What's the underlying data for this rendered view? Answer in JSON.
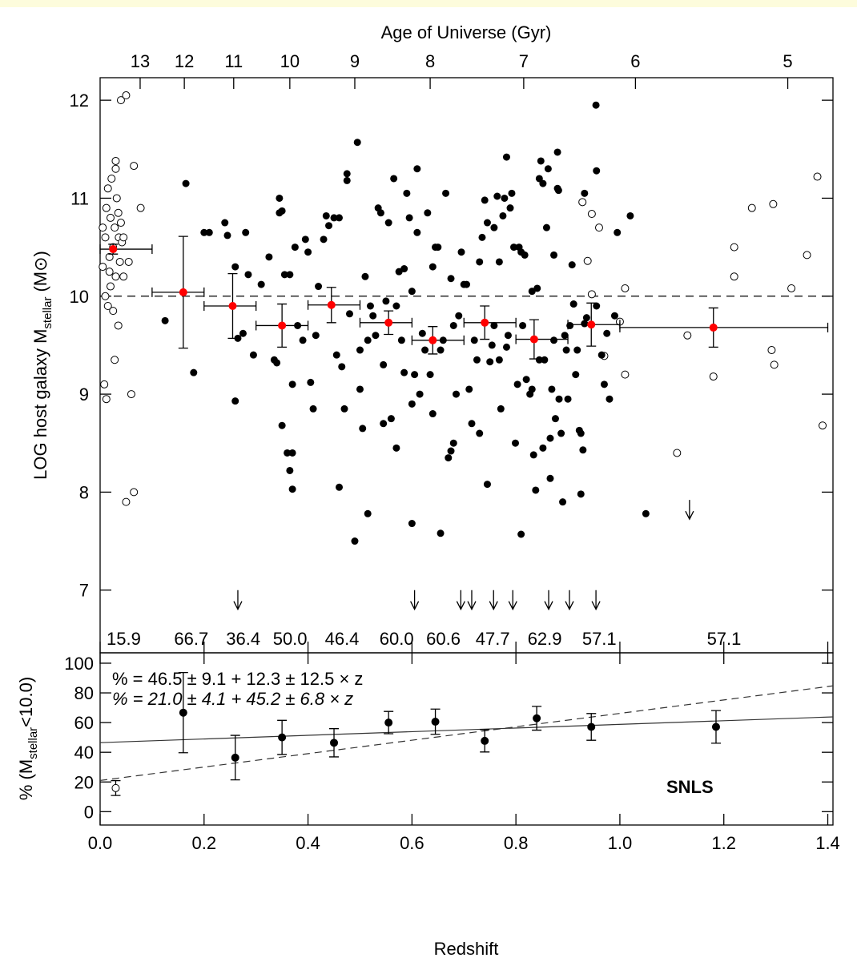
{
  "chart_data": [
    {
      "type": "scatter",
      "top_axis_label": "Age of Universe (Gyr)",
      "top_ticks": [
        13,
        12,
        11,
        10,
        9,
        8,
        7,
        6,
        5
      ],
      "top_tick_z": [
        0.077,
        0.162,
        0.257,
        0.365,
        0.49,
        0.635,
        0.815,
        1.03,
        1.323
      ],
      "y_label": "LOG host galaxy M",
      "y_label_sub": "stellar",
      "y_label_unit": "(M⊙)",
      "xlim": [
        0,
        1.41
      ],
      "ylim": [
        6.36,
        12.23
      ],
      "xticks": [
        0,
        0.2,
        0.4,
        0.6,
        0.8,
        1,
        1.2,
        1.4
      ],
      "yticks": [
        7,
        8,
        9,
        10,
        11,
        12
      ],
      "threshold": 10,
      "color": "#000000",
      "filled": [
        [
          0.125,
          9.75
        ],
        [
          0.165,
          11.15
        ],
        [
          0.18,
          9.22
        ],
        [
          0.2,
          10.65
        ],
        [
          0.21,
          10.65
        ],
        [
          0.24,
          10.75
        ],
        [
          0.245,
          10.62
        ],
        [
          0.26,
          10.3
        ],
        [
          0.26,
          8.93
        ],
        [
          0.265,
          9.57
        ],
        [
          0.275,
          9.62
        ],
        [
          0.28,
          10.65
        ],
        [
          0.285,
          10.22
        ],
        [
          0.295,
          9.4
        ],
        [
          0.31,
          10.12
        ],
        [
          0.325,
          10.4
        ],
        [
          0.335,
          9.35
        ],
        [
          0.34,
          9.32
        ],
        [
          0.345,
          11.0
        ],
        [
          0.345,
          10.85
        ],
        [
          0.35,
          10.87
        ],
        [
          0.35,
          8.68
        ],
        [
          0.355,
          10.22
        ],
        [
          0.36,
          8.4
        ],
        [
          0.365,
          10.22
        ],
        [
          0.365,
          8.22
        ],
        [
          0.37,
          8.4
        ],
        [
          0.37,
          8.03
        ],
        [
          0.37,
          9.1
        ],
        [
          0.375,
          10.5
        ],
        [
          0.38,
          9.7
        ],
        [
          0.39,
          9.55
        ],
        [
          0.395,
          10.58
        ],
        [
          0.4,
          10.45
        ],
        [
          0.405,
          9.12
        ],
        [
          0.41,
          8.85
        ],
        [
          0.415,
          9.6
        ],
        [
          0.42,
          10.1
        ],
        [
          0.43,
          10.58
        ],
        [
          0.435,
          10.82
        ],
        [
          0.44,
          10.72
        ],
        [
          0.45,
          10.8
        ],
        [
          0.455,
          9.4
        ],
        [
          0.46,
          10.8
        ],
        [
          0.46,
          8.05
        ],
        [
          0.465,
          9.28
        ],
        [
          0.47,
          8.85
        ],
        [
          0.475,
          11.25
        ],
        [
          0.475,
          11.18
        ],
        [
          0.48,
          9.82
        ],
        [
          0.49,
          7.5
        ],
        [
          0.495,
          11.57
        ],
        [
          0.5,
          9.45
        ],
        [
          0.5,
          9.05
        ],
        [
          0.505,
          8.65
        ],
        [
          0.51,
          10.2
        ],
        [
          0.515,
          7.78
        ],
        [
          0.515,
          9.55
        ],
        [
          0.52,
          9.9
        ],
        [
          0.525,
          9.8
        ],
        [
          0.53,
          9.6
        ],
        [
          0.535,
          10.9
        ],
        [
          0.54,
          10.85
        ],
        [
          0.545,
          9.3
        ],
        [
          0.545,
          8.7
        ],
        [
          0.55,
          9.95
        ],
        [
          0.555,
          10.75
        ],
        [
          0.56,
          8.75
        ],
        [
          0.565,
          11.2
        ],
        [
          0.57,
          8.45
        ],
        [
          0.57,
          9.9
        ],
        [
          0.575,
          10.25
        ],
        [
          0.58,
          9.55
        ],
        [
          0.585,
          10.28
        ],
        [
          0.585,
          9.22
        ],
        [
          0.59,
          11.05
        ],
        [
          0.595,
          10.8
        ],
        [
          0.6,
          10.05
        ],
        [
          0.6,
          8.9
        ],
        [
          0.6,
          7.68
        ],
        [
          0.605,
          9.2
        ],
        [
          0.61,
          10.65
        ],
        [
          0.61,
          11.3
        ],
        [
          0.615,
          9.0
        ],
        [
          0.62,
          9.62
        ],
        [
          0.625,
          9.45
        ],
        [
          0.63,
          10.85
        ],
        [
          0.635,
          9.2
        ],
        [
          0.64,
          8.8
        ],
        [
          0.64,
          10.3
        ],
        [
          0.645,
          10.5
        ],
        [
          0.65,
          10.5
        ],
        [
          0.655,
          9.45
        ],
        [
          0.655,
          7.58
        ],
        [
          0.66,
          9.55
        ],
        [
          0.665,
          11.05
        ],
        [
          0.67,
          8.35
        ],
        [
          0.675,
          10.18
        ],
        [
          0.675,
          8.42
        ],
        [
          0.68,
          9.7
        ],
        [
          0.68,
          8.5
        ],
        [
          0.685,
          9.0
        ],
        [
          0.69,
          9.8
        ],
        [
          0.695,
          10.45
        ],
        [
          0.7,
          10.12
        ],
        [
          0.705,
          10.12
        ],
        [
          0.71,
          9.05
        ],
        [
          0.715,
          8.7
        ],
        [
          0.72,
          9.55
        ],
        [
          0.725,
          9.35
        ],
        [
          0.73,
          10.35
        ],
        [
          0.73,
          8.6
        ],
        [
          0.735,
          10.6
        ],
        [
          0.74,
          10.98
        ],
        [
          0.745,
          10.75
        ],
        [
          0.745,
          8.08
        ],
        [
          0.75,
          9.33
        ],
        [
          0.754,
          9.5
        ],
        [
          0.758,
          10.7
        ],
        [
          0.758,
          9.7
        ],
        [
          0.764,
          11.02
        ],
        [
          0.768,
          10.35
        ],
        [
          0.768,
          9.35
        ],
        [
          0.771,
          8.85
        ],
        [
          0.775,
          10.82
        ],
        [
          0.778,
          11.0
        ],
        [
          0.782,
          11.42
        ],
        [
          0.782,
          9.48
        ],
        [
          0.785,
          9.6
        ],
        [
          0.789,
          10.9
        ],
        [
          0.792,
          11.05
        ],
        [
          0.796,
          10.5
        ],
        [
          0.799,
          8.5
        ],
        [
          0.803,
          9.1
        ],
        [
          0.806,
          10.5
        ],
        [
          0.81,
          10.45
        ],
        [
          0.81,
          7.57
        ],
        [
          0.813,
          9.7
        ],
        [
          0.817,
          10.42
        ],
        [
          0.82,
          9.15
        ],
        [
          0.827,
          9.0
        ],
        [
          0.831,
          9.05
        ],
        [
          0.831,
          10.05
        ],
        [
          0.834,
          8.38
        ],
        [
          0.838,
          8.02
        ],
        [
          0.841,
          10.08
        ],
        [
          0.845,
          11.2
        ],
        [
          0.845,
          9.35
        ],
        [
          0.848,
          11.38
        ],
        [
          0.852,
          11.15
        ],
        [
          0.852,
          8.45
        ],
        [
          0.855,
          9.35
        ],
        [
          0.859,
          10.7
        ],
        [
          0.862,
          11.3
        ],
        [
          0.866,
          8.55
        ],
        [
          0.866,
          8.14
        ],
        [
          0.869,
          9.05
        ],
        [
          0.873,
          10.42
        ],
        [
          0.873,
          9.55
        ],
        [
          0.876,
          8.75
        ],
        [
          0.88,
          11.47
        ],
        [
          0.88,
          11.1
        ],
        [
          0.882,
          11.08
        ],
        [
          0.883,
          8.95
        ],
        [
          0.887,
          8.6
        ],
        [
          0.89,
          7.9
        ],
        [
          0.894,
          9.6
        ],
        [
          0.897,
          9.45
        ],
        [
          0.9,
          8.95
        ],
        [
          0.904,
          9.7
        ],
        [
          0.908,
          10.32
        ],
        [
          0.911,
          9.92
        ],
        [
          0.915,
          9.2
        ],
        [
          0.918,
          9.45
        ],
        [
          0.922,
          8.63
        ],
        [
          0.925,
          8.6
        ],
        [
          0.925,
          7.98
        ],
        [
          0.929,
          8.43
        ],
        [
          0.932,
          9.72
        ],
        [
          0.932,
          11.05
        ],
        [
          0.936,
          9.78
        ],
        [
          0.954,
          11.95
        ],
        [
          0.955,
          11.28
        ],
        [
          0.965,
          9.4
        ],
        [
          0.97,
          9.1
        ],
        [
          0.975,
          9.62
        ],
        [
          0.995,
          10.65
        ],
        [
          0.98,
          8.95
        ],
        [
          1.02,
          10.82
        ],
        [
          1.05,
          7.78
        ],
        [
          0.99,
          9.8
        ],
        [
          0.955,
          9.9
        ]
      ],
      "open": [
        [
          0.005,
          10.3
        ],
        [
          0.01,
          10.6
        ],
        [
          0.012,
          10.9
        ],
        [
          0.015,
          11.1
        ],
        [
          0.018,
          10.4
        ],
        [
          0.02,
          10.8
        ],
        [
          0.022,
          11.2
        ],
        [
          0.025,
          10.5
        ],
        [
          0.028,
          10.7
        ],
        [
          0.03,
          11.3
        ],
        [
          0.03,
          10.2
        ],
        [
          0.032,
          11.0
        ],
        [
          0.035,
          10.85
        ],
        [
          0.036,
          10.6
        ],
        [
          0.038,
          10.35
        ],
        [
          0.04,
          10.75
        ],
        [
          0.042,
          10.55
        ],
        [
          0.01,
          10.0
        ],
        [
          0.015,
          9.9
        ],
        [
          0.02,
          10.1
        ],
        [
          0.025,
          9.85
        ],
        [
          0.008,
          9.1
        ],
        [
          0.012,
          8.95
        ],
        [
          0.028,
          9.35
        ],
        [
          0.035,
          9.7
        ],
        [
          0.045,
          10.2
        ],
        [
          0.055,
          10.35
        ],
        [
          0.03,
          11.38
        ],
        [
          0.04,
          12.0
        ],
        [
          0.05,
          12.05
        ],
        [
          0.065,
          11.33
        ],
        [
          0.078,
          10.9
        ],
        [
          0.06,
          9.0
        ],
        [
          0.05,
          7.9
        ],
        [
          0.065,
          8.0
        ],
        [
          0.005,
          10.7
        ],
        [
          0.018,
          10.25
        ],
        [
          0.045,
          10.6
        ],
        [
          0.928,
          10.96
        ],
        [
          0.938,
          10.36
        ],
        [
          0.946,
          10.84
        ],
        [
          0.946,
          10.02
        ],
        [
          0.96,
          10.7
        ],
        [
          0.97,
          9.39
        ],
        [
          1.0,
          9.74
        ],
        [
          1.01,
          10.08
        ],
        [
          1.01,
          9.2
        ],
        [
          1.11,
          8.4
        ],
        [
          1.13,
          9.6
        ],
        [
          1.18,
          9.18
        ],
        [
          1.22,
          10.5
        ],
        [
          1.22,
          10.2
        ],
        [
          1.254,
          10.9
        ],
        [
          1.295,
          10.94
        ],
        [
          1.292,
          9.45
        ],
        [
          1.297,
          9.3
        ],
        [
          1.33,
          10.08
        ],
        [
          1.36,
          10.42
        ],
        [
          1.38,
          11.22
        ],
        [
          1.39,
          8.68
        ]
      ],
      "binned": {
        "color": "#ff0000",
        "x": [
          0.025,
          0.16,
          0.255,
          0.35,
          0.445,
          0.555,
          0.64,
          0.74,
          0.835,
          0.945,
          1.18
        ],
        "values": [
          10.48,
          10.04,
          9.9,
          9.7,
          9.91,
          9.73,
          9.55,
          9.73,
          9.56,
          9.71,
          9.68
        ],
        "x_low": [
          0,
          0.1,
          0.2,
          0.3,
          0.4,
          0.5,
          0.6,
          0.7,
          0.8,
          0.9,
          1.0
        ],
        "x_high": [
          0.1,
          0.2,
          0.3,
          0.4,
          0.5,
          0.6,
          0.7,
          0.8,
          0.9,
          1.0,
          1.4
        ],
        "errors": [
          0.05,
          0.57,
          0.33,
          0.22,
          0.18,
          0.12,
          0.14,
          0.17,
          0.2,
          0.22,
          0.2
        ]
      },
      "upper_limits": [
        [
          0.265,
          7.0
        ],
        [
          0.605,
          7.0
        ],
        [
          0.694,
          7.0
        ],
        [
          0.715,
          7.0
        ],
        [
          0.757,
          7.0
        ],
        [
          0.794,
          7.0
        ],
        [
          0.863,
          7.0
        ],
        [
          0.903,
          7.0
        ],
        [
          0.954,
          7.0
        ],
        [
          1.134,
          7.92
        ]
      ]
    },
    {
      "type": "errorbar",
      "x": [
        0.03,
        0.16,
        0.26,
        0.35,
        0.45,
        0.555,
        0.645,
        0.74,
        0.84,
        0.945,
        1.185
      ],
      "values": [
        15.9,
        66.7,
        36.4,
        50,
        46.4,
        60,
        60.6,
        47.7,
        62.9,
        57.1,
        57.1
      ],
      "value_labels": [
        "15.9",
        "66.7",
        "36.4",
        "50.0",
        "46.4",
        "60.0",
        "60.6",
        "47.7",
        "62.9",
        "57.1",
        "57.1"
      ],
      "errors": [
        5,
        27,
        15,
        11.5,
        9.5,
        7.5,
        8.5,
        7.5,
        8,
        9,
        11
      ],
      "markers": [
        "open",
        "filled",
        "filled",
        "filled",
        "filled",
        "filled",
        "filled",
        "filled",
        "filled",
        "filled",
        "filled"
      ],
      "color": "#000000",
      "fits": [
        {
          "intercept": 46.5,
          "slope": 12.3,
          "style": "solid"
        },
        {
          "intercept": 21.0,
          "slope": 45.2,
          "style": "dashed"
        }
      ],
      "annotations": [
        "% = 46.5 ± 9.1 + 12.3 ± 12.5 × z",
        "% = 21.0 ± 4.1 + 45.2 ± 6.8 × z"
      ],
      "label": "SNLS",
      "x_label": "Redshift",
      "y_label_pre": "% (M",
      "y_label_sub": "stellar",
      "y_label_post": "<10.0)",
      "xlim": [
        0,
        1.41
      ],
      "ylim": [
        -9,
        107
      ],
      "xticks": [
        {
          "value": 0,
          "label": "0.0"
        },
        0.2,
        0.4,
        0.6,
        0.8,
        {
          "value": 1,
          "label": "1.0"
        },
        1.2,
        1.4
      ],
      "yticks": [
        0,
        20,
        40,
        60,
        80,
        100
      ]
    }
  ]
}
